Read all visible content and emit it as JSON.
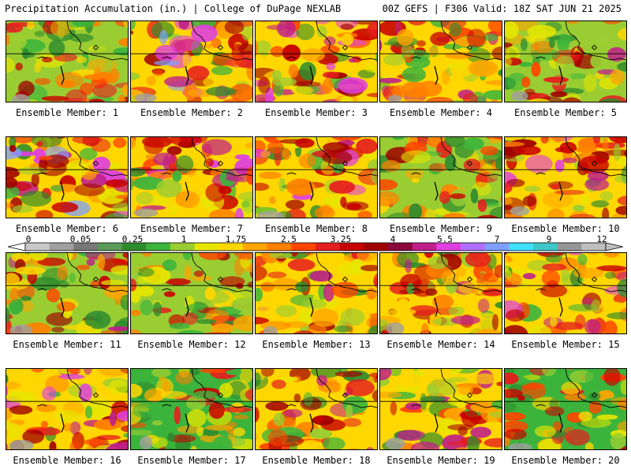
{
  "header": {
    "left_title": "Precipitation Accumulation (in.) | College of DuPage NEXLAB",
    "right_title": "00Z GEFS | F306 Valid: 18Z SAT JUN 21 2025"
  },
  "colorbar": {
    "tick_labels": [
      "0",
      "0.05",
      "0.25",
      "1",
      "1.75",
      "2.5",
      "3.25",
      "4",
      "5.5",
      "7",
      "9",
      "12"
    ],
    "colors": [
      "#c8c8c8",
      "#a0a0a0",
      "#787878",
      "#5a9a5a",
      "#2e8b2e",
      "#3cb43c",
      "#9acd32",
      "#e6e600",
      "#ffd700",
      "#ffa500",
      "#ff7f00",
      "#ff4500",
      "#e61e1e",
      "#c80000",
      "#a00000",
      "#8b0a3c",
      "#c0208a",
      "#e040e0",
      "#b070ff",
      "#7fa0ff",
      "#40e0ff",
      "#40c8c8",
      "#969696",
      "#bebebe"
    ]
  },
  "members": [
    {
      "label": "Ensemble Member: 1",
      "wet": 0.35
    },
    {
      "label": "Ensemble Member: 2",
      "wet": 0.75
    },
    {
      "label": "Ensemble Member: 3",
      "wet": 0.6
    },
    {
      "label": "Ensemble Member: 4",
      "wet": 0.55
    },
    {
      "label": "Ensemble Member: 5",
      "wet": 0.45
    },
    {
      "label": "Ensemble Member: 6",
      "wet": 0.7
    },
    {
      "label": "Ensemble Member: 7",
      "wet": 0.62
    },
    {
      "label": "Ensemble Member: 8",
      "wet": 0.6
    },
    {
      "label": "Ensemble Member: 9",
      "wet": 0.4
    },
    {
      "label": "Ensemble Member: 10",
      "wet": 0.6
    },
    {
      "label": "Ensemble Member: 11",
      "wet": 0.45
    },
    {
      "label": "Ensemble Member: 12",
      "wet": 0.4
    },
    {
      "label": "Ensemble Member: 13",
      "wet": 0.55
    },
    {
      "label": "Ensemble Member: 14",
      "wet": 0.5
    },
    {
      "label": "Ensemble Member: 15",
      "wet": 0.6
    },
    {
      "label": "Ensemble Member: 16",
      "wet": 0.65
    },
    {
      "label": "Ensemble Member: 17",
      "wet": 0.3
    },
    {
      "label": "Ensemble Member: 18",
      "wet": 0.5
    },
    {
      "label": "Ensemble Member: 19",
      "wet": 0.55
    },
    {
      "label": "Ensemble Member: 20",
      "wet": 0.25
    }
  ]
}
